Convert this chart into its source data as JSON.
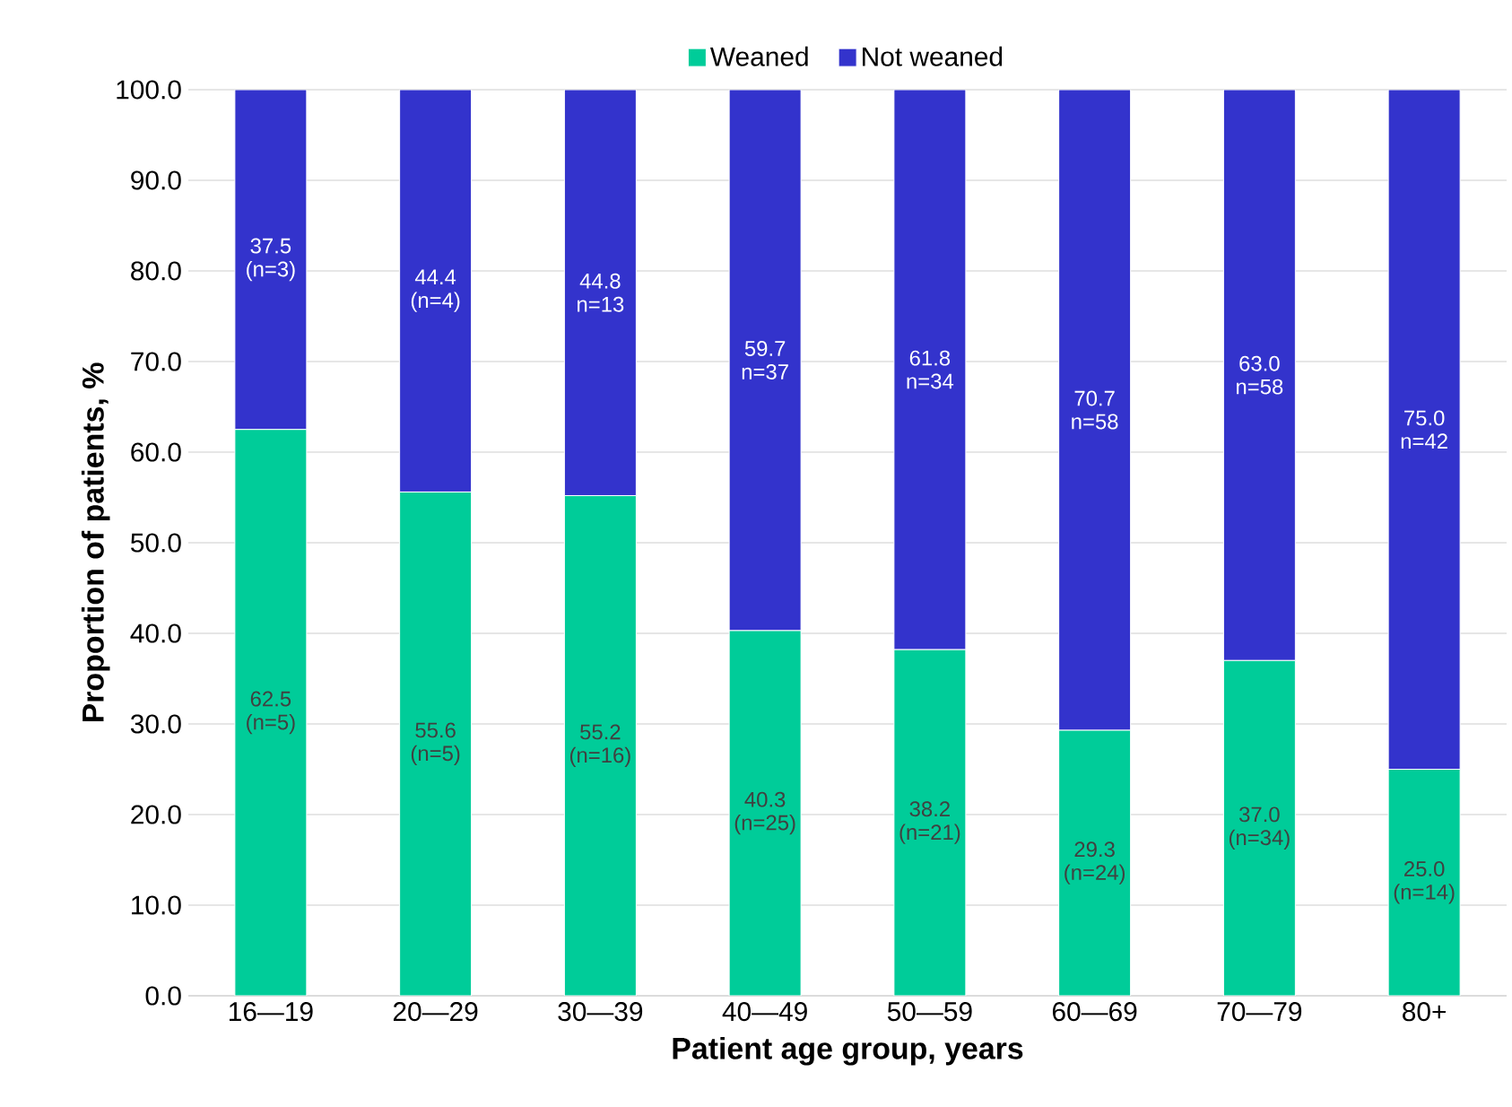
{
  "chart_data": {
    "type": "bar",
    "stacked": true,
    "xlabel": "Patient age group, years",
    "ylabel": "Proportion of patients, %",
    "categories": [
      "16—19",
      "20—29",
      "30—39",
      "40—49",
      "50—59",
      "60—69",
      "70—79",
      "80+"
    ],
    "series": [
      {
        "name": "Weaned",
        "color": "#00cc99",
        "values": [
          62.5,
          55.6,
          55.2,
          40.3,
          38.2,
          29.3,
          37.0,
          25.0
        ],
        "value_labels": [
          "62.5 (n=5)",
          "55.6 (n=5)",
          "55.2 (n=16)",
          "40.3 (n=25)",
          "38.2 (n=21)",
          "29.3 (n=24)",
          "37.0 (n=34)",
          "25.0 (n=14)"
        ]
      },
      {
        "name": "Not weaned",
        "color": "#3333cc",
        "values": [
          37.5,
          44.4,
          44.8,
          59.7,
          61.8,
          70.7,
          63.0,
          75.0
        ],
        "value_labels": [
          "37.5 (n=3)",
          "44.4 (n=4)",
          "44.8 n=13",
          "59.7 n=37",
          "61.8 n=34",
          "70.7 n=58",
          "63.0 n=58",
          "75.0 n=42"
        ]
      }
    ],
    "ylim": [
      0,
      100
    ],
    "yticks": [
      {
        "value": 0,
        "label": "0.0"
      },
      {
        "value": 10,
        "label": "10.0"
      },
      {
        "value": 20,
        "label": "20.0"
      },
      {
        "value": 30,
        "label": "30.0"
      },
      {
        "value": 40,
        "label": "40.0"
      },
      {
        "value": 50,
        "label": "50.0"
      },
      {
        "value": 60,
        "label": "60.0"
      },
      {
        "value": 70,
        "label": "70.0"
      },
      {
        "value": 80,
        "label": "80.0"
      },
      {
        "value": 90,
        "label": "90.0"
      },
      {
        "value": 100,
        "label": "100.0"
      }
    ],
    "grid": "y",
    "legend": "top"
  }
}
